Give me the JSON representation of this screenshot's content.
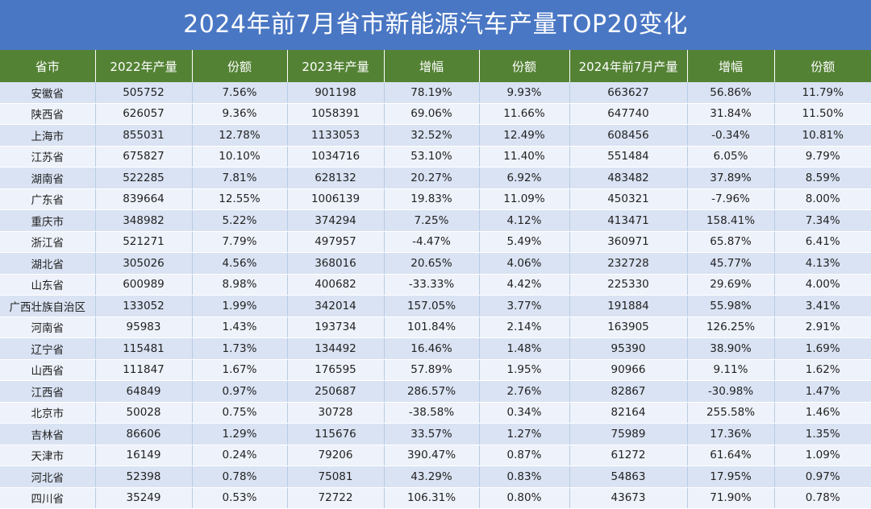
{
  "title": "2024年前7月省市新能源汽车产量TOP20变化",
  "colors": {
    "title_bg": "#4a77c4",
    "header_bg": "#548235",
    "row_odd": "#dae3f3",
    "row_even": "#eef2fa"
  },
  "table": {
    "headers": [
      "省市",
      "2022年产量",
      "份额",
      "2023年产量",
      "增幅",
      "份额",
      "2024年前7月产量",
      "增幅",
      "份额"
    ],
    "rows": [
      [
        "安徽省",
        "505752",
        "7.56%",
        "901198",
        "78.19%",
        "9.93%",
        "663627",
        "56.86%",
        "11.79%"
      ],
      [
        "陕西省",
        "626057",
        "9.36%",
        "1058391",
        "69.06%",
        "11.66%",
        "647740",
        "31.84%",
        "11.50%"
      ],
      [
        "上海市",
        "855031",
        "12.78%",
        "1133053",
        "32.52%",
        "12.49%",
        "608456",
        "-0.34%",
        "10.81%"
      ],
      [
        "江苏省",
        "675827",
        "10.10%",
        "1034716",
        "53.10%",
        "11.40%",
        "551484",
        "6.05%",
        "9.79%"
      ],
      [
        "湖南省",
        "522285",
        "7.81%",
        "628132",
        "20.27%",
        "6.92%",
        "483482",
        "37.89%",
        "8.59%"
      ],
      [
        "广东省",
        "839664",
        "12.55%",
        "1006139",
        "19.83%",
        "11.09%",
        "450321",
        "-7.96%",
        "8.00%"
      ],
      [
        "重庆市",
        "348982",
        "5.22%",
        "374294",
        "7.25%",
        "4.12%",
        "413471",
        "158.41%",
        "7.34%"
      ],
      [
        "浙江省",
        "521271",
        "7.79%",
        "497957",
        "-4.47%",
        "5.49%",
        "360971",
        "65.87%",
        "6.41%"
      ],
      [
        "湖北省",
        "305026",
        "4.56%",
        "368016",
        "20.65%",
        "4.06%",
        "232728",
        "45.77%",
        "4.13%"
      ],
      [
        "山东省",
        "600989",
        "8.98%",
        "400682",
        "-33.33%",
        "4.42%",
        "225330",
        "29.69%",
        "4.00%"
      ],
      [
        "广西壮族自治区",
        "133052",
        "1.99%",
        "342014",
        "157.05%",
        "3.77%",
        "191884",
        "55.98%",
        "3.41%"
      ],
      [
        "河南省",
        "95983",
        "1.43%",
        "193734",
        "101.84%",
        "2.14%",
        "163905",
        "126.25%",
        "2.91%"
      ],
      [
        "辽宁省",
        "115481",
        "1.73%",
        "134492",
        "16.46%",
        "1.48%",
        "95390",
        "38.90%",
        "1.69%"
      ],
      [
        "山西省",
        "111847",
        "1.67%",
        "176595",
        "57.89%",
        "1.95%",
        "90966",
        "9.11%",
        "1.62%"
      ],
      [
        "江西省",
        "64849",
        "0.97%",
        "250687",
        "286.57%",
        "2.76%",
        "82867",
        "-30.98%",
        "1.47%"
      ],
      [
        "北京市",
        "50028",
        "0.75%",
        "30728",
        "-38.58%",
        "0.34%",
        "82164",
        "255.58%",
        "1.46%"
      ],
      [
        "吉林省",
        "86606",
        "1.29%",
        "115676",
        "33.57%",
        "1.27%",
        "75989",
        "17.36%",
        "1.35%"
      ],
      [
        "天津市",
        "16149",
        "0.24%",
        "79206",
        "390.47%",
        "0.87%",
        "61272",
        "61.64%",
        "1.09%"
      ],
      [
        "河北省",
        "52398",
        "0.78%",
        "75081",
        "43.29%",
        "0.83%",
        "54863",
        "17.95%",
        "0.97%"
      ],
      [
        "四川省",
        "35249",
        "0.53%",
        "72722",
        "106.31%",
        "0.80%",
        "43673",
        "71.90%",
        "0.78%"
      ]
    ]
  }
}
